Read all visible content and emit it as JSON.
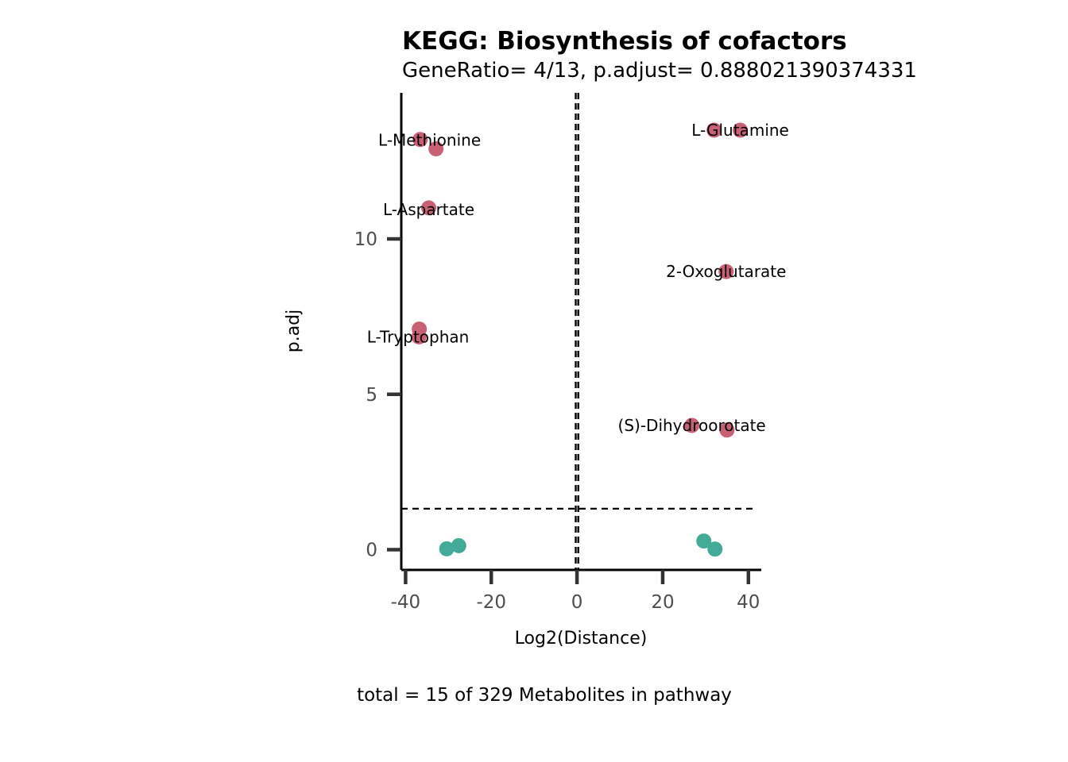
{
  "chart_data": {
    "type": "scatter",
    "title": "KEGG: Biosynthesis of cofactors",
    "subtitle": "GeneRatio= 4/13, p.adjust= 0.888021390374331",
    "xlabel": "Log2(Distance)",
    "ylabel": "p.adj",
    "caption": "total = 15 of 329 Metabolites in pathway",
    "xlim": [
      -41,
      43
    ],
    "ylim": [
      -0.65,
      14.7
    ],
    "x_ticks": [
      -40,
      -20,
      0,
      20,
      40
    ],
    "x_tick_labels": [
      "-40",
      "-20",
      "0",
      "20",
      "40"
    ],
    "y_ticks": [
      0,
      5,
      10
    ],
    "y_tick_labels": [
      "0",
      "5",
      "10"
    ],
    "grid": false,
    "legend": "none",
    "threshold_lines": {
      "vertical": [
        -0.3,
        0.3
      ],
      "horizontal": 1.32
    },
    "colors": {
      "significant": "#c96174",
      "non_significant": "#43aa98"
    },
    "points": [
      {
        "x": -36.6,
        "y": 13.2,
        "group": "significant",
        "label": "L-Methionine"
      },
      {
        "x": -32.9,
        "y": 12.9,
        "group": "significant",
        "label": ""
      },
      {
        "x": -34.6,
        "y": 11.0,
        "group": "significant",
        "label": "L-Aspartate"
      },
      {
        "x": -36.8,
        "y": 7.1,
        "group": "significant",
        "label": ""
      },
      {
        "x": -36.9,
        "y": 6.85,
        "group": "significant",
        "label": "L-Tryptophan"
      },
      {
        "x": 32.0,
        "y": 13.5,
        "group": "significant",
        "label": ""
      },
      {
        "x": 38.1,
        "y": 13.5,
        "group": "significant",
        "label": "L-Glutamine"
      },
      {
        "x": 34.8,
        "y": 8.95,
        "group": "significant",
        "label": "2-Oxoglutarate"
      },
      {
        "x": 26.8,
        "y": 4.0,
        "group": "significant",
        "label": "(S)-Dihydroorotate"
      },
      {
        "x": 35.0,
        "y": 3.85,
        "group": "significant",
        "label": ""
      },
      {
        "x": -30.4,
        "y": 0.03,
        "group": "non_significant",
        "label": ""
      },
      {
        "x": -27.6,
        "y": 0.13,
        "group": "non_significant",
        "label": ""
      },
      {
        "x": 29.6,
        "y": 0.28,
        "group": "non_significant",
        "label": ""
      },
      {
        "x": 32.2,
        "y": 0.02,
        "group": "non_significant",
        "label": ""
      }
    ],
    "point_labels": [
      {
        "text": "L-Methionine",
        "x": -34.4,
        "y": 13.18
      },
      {
        "text": "L-Aspartate",
        "x": -34.6,
        "y": 10.95
      },
      {
        "text": "L-Tryptophan",
        "x": -37.1,
        "y": 6.85
      },
      {
        "text": "L-Glutamine",
        "x": 38.1,
        "y": 13.5
      },
      {
        "text": "2-Oxoglutarate",
        "x": 34.8,
        "y": 8.95
      },
      {
        "text": "(S)-Dihydroorotate",
        "x": 26.8,
        "y": 4.0
      }
    ]
  }
}
